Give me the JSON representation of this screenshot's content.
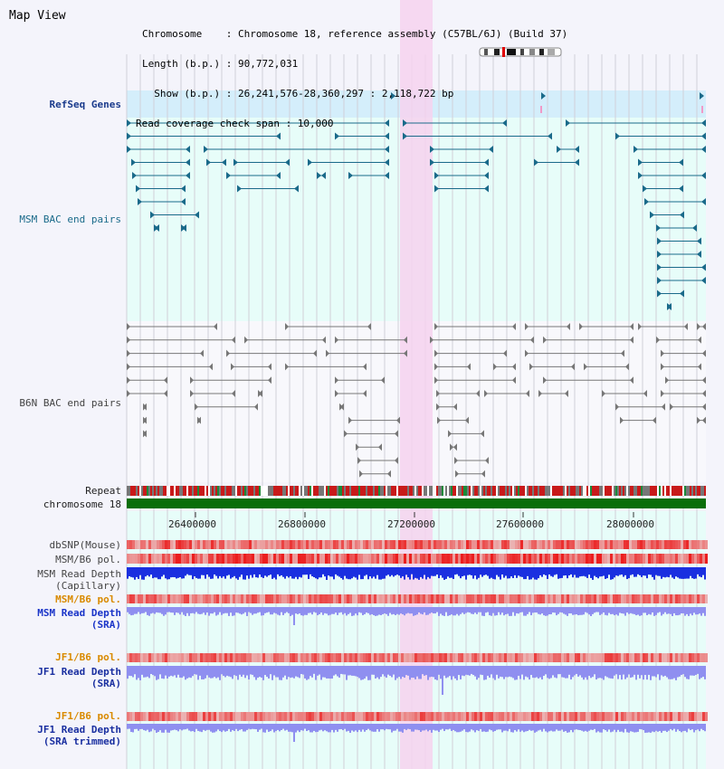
{
  "header": {
    "app_title": "Map View",
    "chromosome_line": "Chromosome    : Chromosome 18, reference assembly (C57BL/6J) (Build 37)",
    "length_line": "Length (b.p.) : 90,772,031",
    "show_line": "  Show (b.p.) : 26,241,576-28,360,297 : 2,118,722 bp",
    "coverage_line": "Read coverage check span : 10,000"
  },
  "tracks": {
    "refseq": "RefSeq Genes",
    "msm_bac": "MSM BAC end pairs",
    "b6n_bac": "B6N BAC end pairs",
    "repeat": "Repeat",
    "chromosome": "chromosome 18",
    "dbsnp": "dbSNP(Mouse)",
    "msm_b6_pol_1": "MSM/B6 pol.",
    "msm_read_depth_cap_1": "MSM Read Depth",
    "msm_read_depth_cap_2": "(Capillary)",
    "msm_b6_pol_2": "MSM/B6 pol.",
    "msm_read_depth_sra_1": "MSM Read Depth",
    "msm_read_depth_sra_2": "(SRA)",
    "jf1_b6_pol_1": "JF1/B6 pol.",
    "jf1_read_depth_sra_1": "JF1 Read Depth",
    "jf1_read_depth_sra_2": "(SRA)",
    "jf1_b6_pol_2": "JF1/B6 pol.",
    "jf1_read_depth_trim_1": "JF1 Read Depth",
    "jf1_read_depth_trim_2": "(SRA trimmed)"
  },
  "axis": {
    "ticks": [
      "26400000",
      "26800000",
      "27200000",
      "27600000",
      "28000000"
    ]
  },
  "colors": {
    "highlight": "#f6d2ef",
    "msm_track": "#e7fdf9",
    "refseq_band": "#d4eefb",
    "gene_color": "#1a6a8a",
    "bac_grey": "#777777",
    "chromosome_bar": "#0a6e0a",
    "depth_dark": "#1a2fe0",
    "depth_light": "#8f8ff0"
  }
}
